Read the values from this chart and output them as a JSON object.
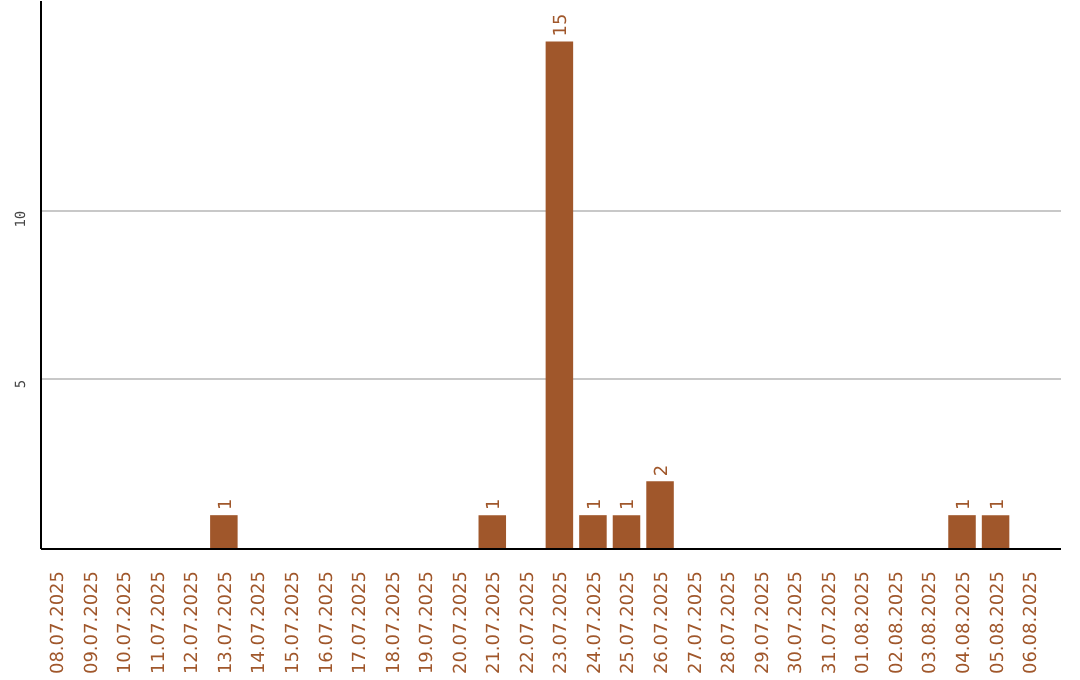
{
  "chart_data": {
    "type": "bar",
    "categories": [
      "08.07.2025",
      "09.07.2025",
      "10.07.2025",
      "11.07.2025",
      "12.07.2025",
      "13.07.2025",
      "14.07.2025",
      "15.07.2025",
      "16.07.2025",
      "17.07.2025",
      "18.07.2025",
      "19.07.2025",
      "20.07.2025",
      "21.07.2025",
      "22.07.2025",
      "23.07.2025",
      "24.07.2025",
      "25.07.2025",
      "26.07.2025",
      "27.07.2025",
      "28.07.2025",
      "29.07.2025",
      "30.07.2025",
      "31.07.2025",
      "01.08.2025",
      "02.08.2025",
      "03.08.2025",
      "04.08.2025",
      "05.08.2025",
      "06.08.2025"
    ],
    "values": [
      0,
      0,
      0,
      0,
      0,
      1,
      0,
      0,
      0,
      0,
      0,
      0,
      0,
      1,
      0,
      15,
      1,
      1,
      2,
      0,
      0,
      0,
      0,
      0,
      0,
      0,
      0,
      1,
      1,
      0
    ],
    "value_labels": [
      null,
      null,
      null,
      null,
      null,
      "1",
      null,
      null,
      null,
      null,
      null,
      null,
      null,
      "1",
      null,
      "15",
      "1",
      "1",
      "2",
      null,
      null,
      null,
      null,
      null,
      null,
      null,
      null,
      "1",
      "1",
      null
    ],
    "color": "#a0572b",
    "ylim": [
      0,
      16.2
    ],
    "yticks": [
      5,
      10
    ],
    "grid": "y"
  }
}
